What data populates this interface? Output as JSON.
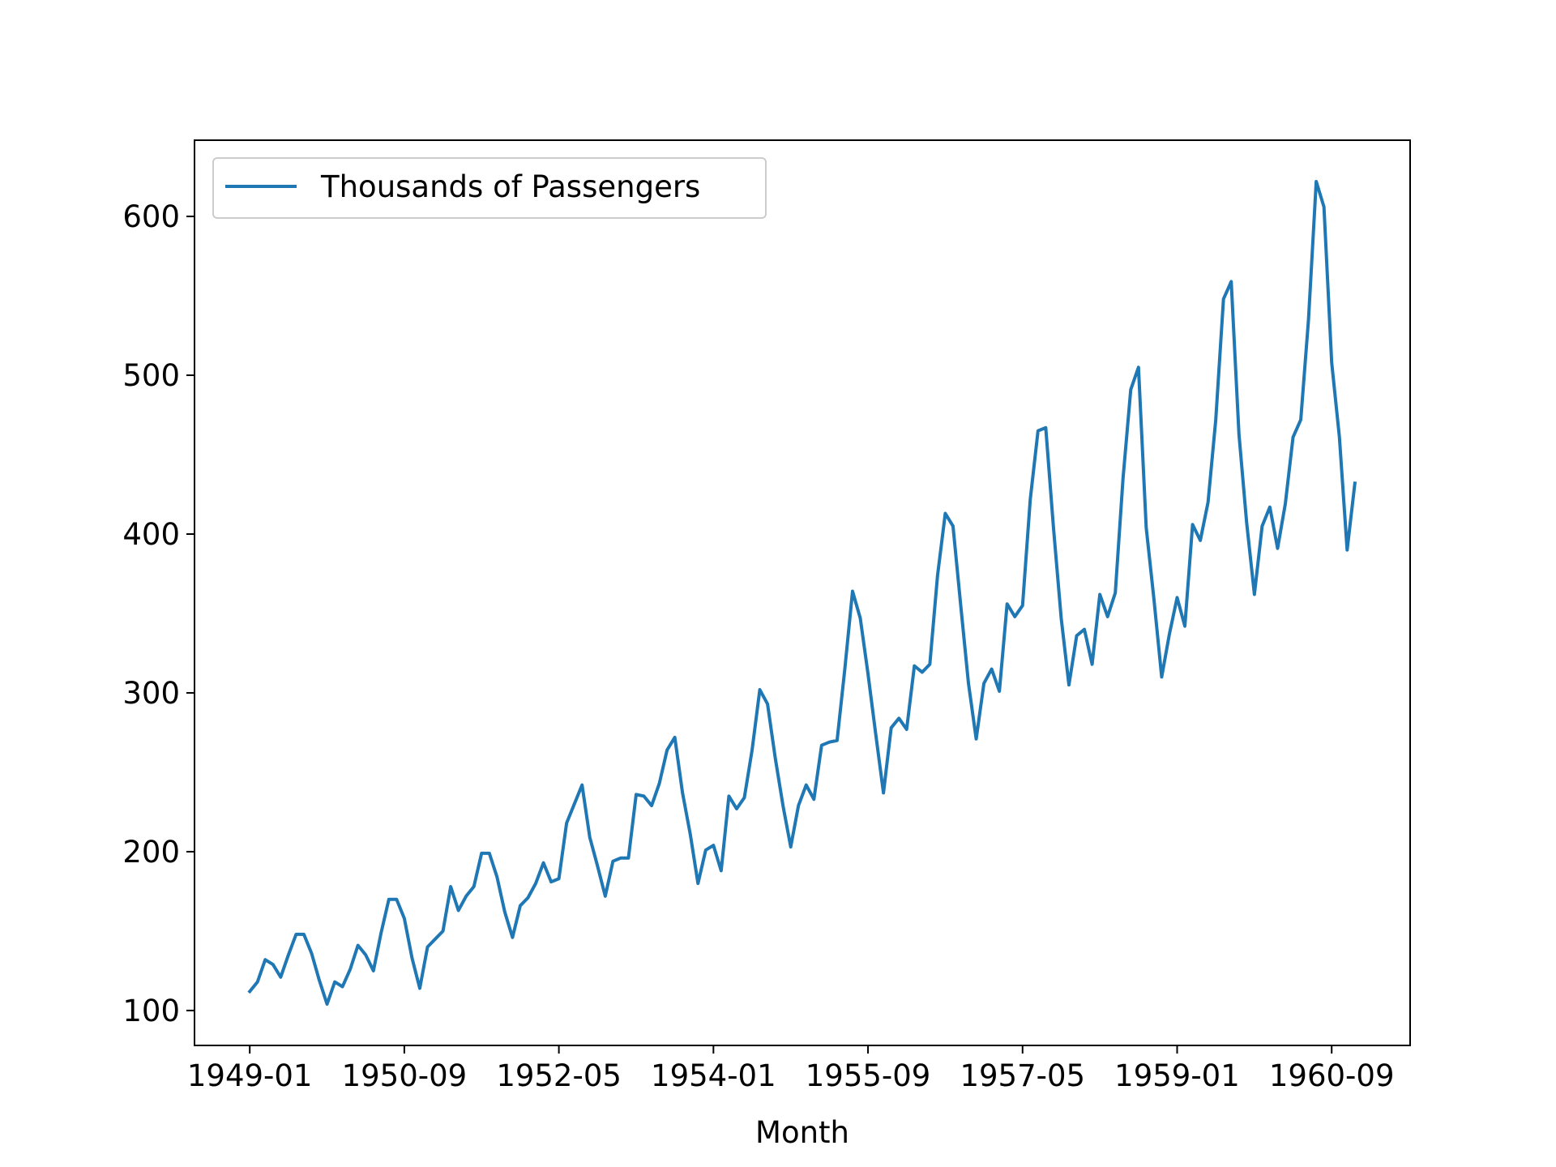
{
  "chart_data": {
    "type": "line",
    "xlabel": "Month",
    "ylabel": "",
    "x_tick_labels": [
      "1949-01",
      "1950-09",
      "1952-05",
      "1954-01",
      "1955-09",
      "1957-05",
      "1959-01",
      "1960-09"
    ],
    "x_start": "1949-01",
    "x_end": "1960-12",
    "ylim": [
      78,
      648
    ],
    "yticks": [
      100,
      200,
      300,
      400,
      500,
      600
    ],
    "grid": false,
    "legend_position": "top-left",
    "series": [
      {
        "name": "Thousands of Passengers",
        "color": "#1f77b4",
        "values": [
          112,
          118,
          132,
          129,
          121,
          135,
          148,
          148,
          136,
          119,
          104,
          118,
          115,
          126,
          141,
          135,
          125,
          149,
          170,
          170,
          158,
          133,
          114,
          140,
          145,
          150,
          178,
          163,
          172,
          178,
          199,
          199,
          184,
          162,
          146,
          166,
          171,
          180,
          193,
          181,
          183,
          218,
          230,
          242,
          209,
          191,
          172,
          194,
          196,
          196,
          236,
          235,
          229,
          243,
          264,
          272,
          237,
          211,
          180,
          201,
          204,
          188,
          235,
          227,
          234,
          264,
          302,
          293,
          259,
          229,
          203,
          229,
          242,
          233,
          267,
          269,
          270,
          315,
          364,
          347,
          312,
          274,
          237,
          278,
          284,
          277,
          317,
          313,
          318,
          374,
          413,
          405,
          355,
          306,
          271,
          306,
          315,
          301,
          356,
          348,
          355,
          422,
          465,
          467,
          404,
          347,
          305,
          336,
          340,
          318,
          362,
          348,
          363,
          435,
          491,
          505,
          404,
          359,
          310,
          337,
          360,
          342,
          406,
          396,
          420,
          472,
          548,
          559,
          463,
          407,
          362,
          405,
          417,
          391,
          419,
          461,
          472,
          535,
          622,
          606,
          508,
          461,
          390,
          432
        ]
      }
    ]
  }
}
